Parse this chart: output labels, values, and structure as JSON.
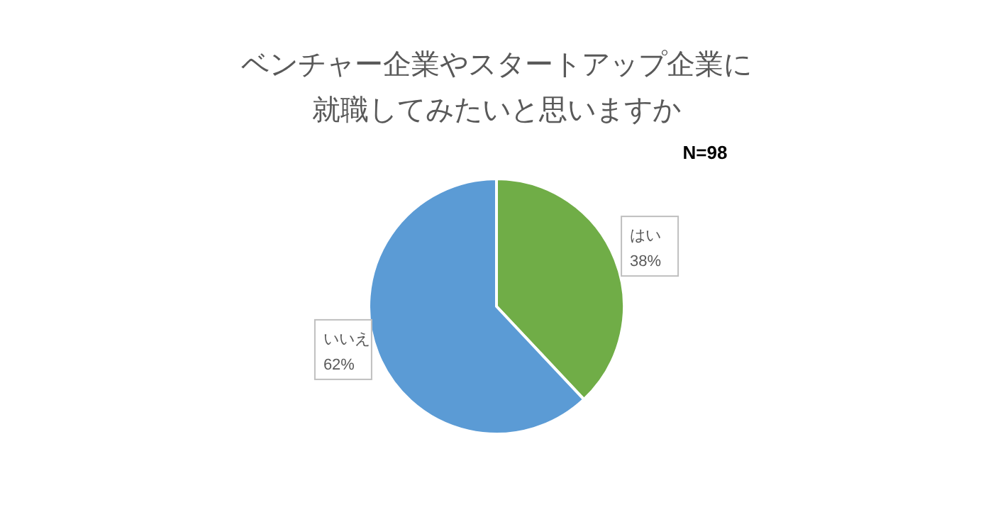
{
  "chart_data": {
    "type": "pie",
    "title": "ベンチャー企業やスタートアップ企業に就職してみたいと思いますか",
    "categories": [
      "はい",
      "いいえ"
    ],
    "values": [
      38,
      62
    ],
    "colors": [
      "#70ad47",
      "#5b9bd5"
    ],
    "value_labels": [
      "38%",
      "62%"
    ],
    "annotations": [
      "N=98"
    ]
  }
}
